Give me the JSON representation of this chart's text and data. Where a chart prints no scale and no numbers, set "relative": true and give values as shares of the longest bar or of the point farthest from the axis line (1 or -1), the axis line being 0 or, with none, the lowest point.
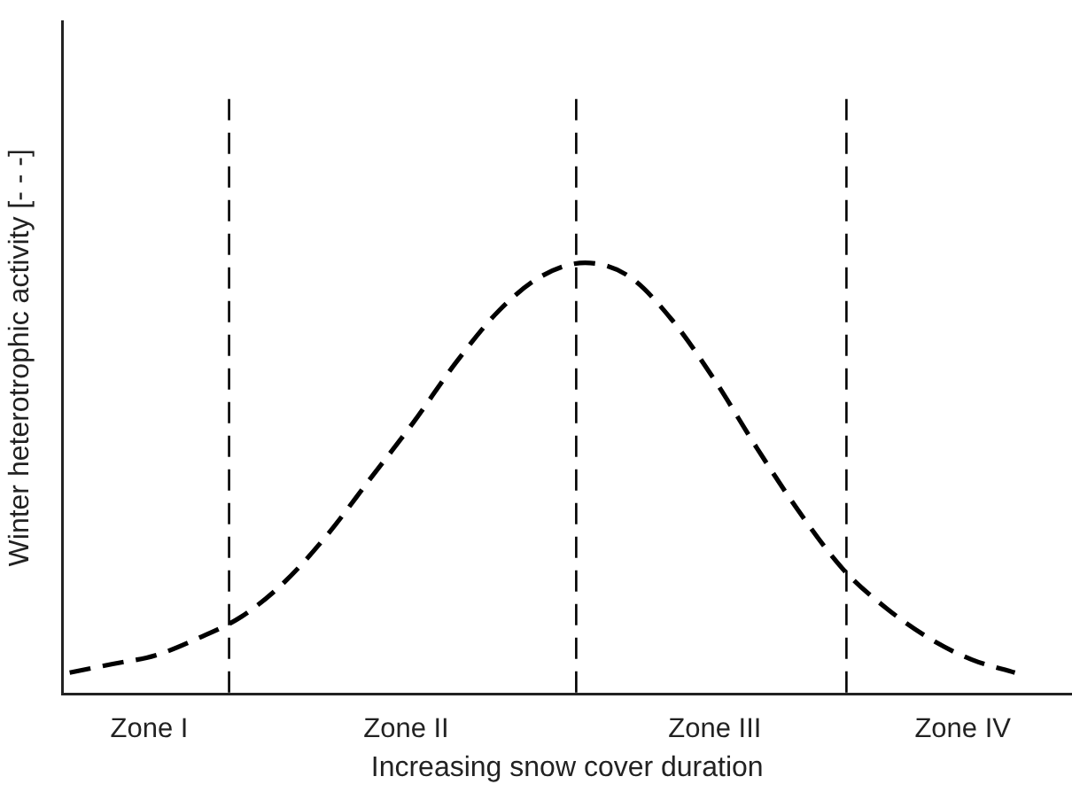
{
  "chart_data": {
    "type": "line",
    "xlabel": "Increasing snow cover duration",
    "ylabel": "Winter heterotrophic activity [- - -]",
    "relative": true,
    "categories": [
      null,
      null,
      null,
      null,
      null,
      null,
      null,
      null,
      null,
      null,
      null,
      null,
      null,
      null,
      null,
      null,
      null,
      null,
      null,
      null,
      null,
      null,
      null
    ],
    "series": [
      {
        "color": "#000000",
        "line_style": "dashed",
        "values": [
          0.05,
          0.07,
          0.09,
          0.13,
          0.18,
          0.26,
          0.37,
          0.5,
          0.63,
          0.77,
          0.89,
          0.97,
          1,
          0.97,
          0.87,
          0.73,
          0.57,
          0.42,
          0.29,
          0.2,
          0.13,
          0.08,
          0.05
        ]
      }
    ],
    "annotations": [
      "Zone I",
      "Zone II",
      "Zone III",
      "Zone IV"
    ],
    "grid": false,
    "legend": false,
    "marker": "none"
  }
}
